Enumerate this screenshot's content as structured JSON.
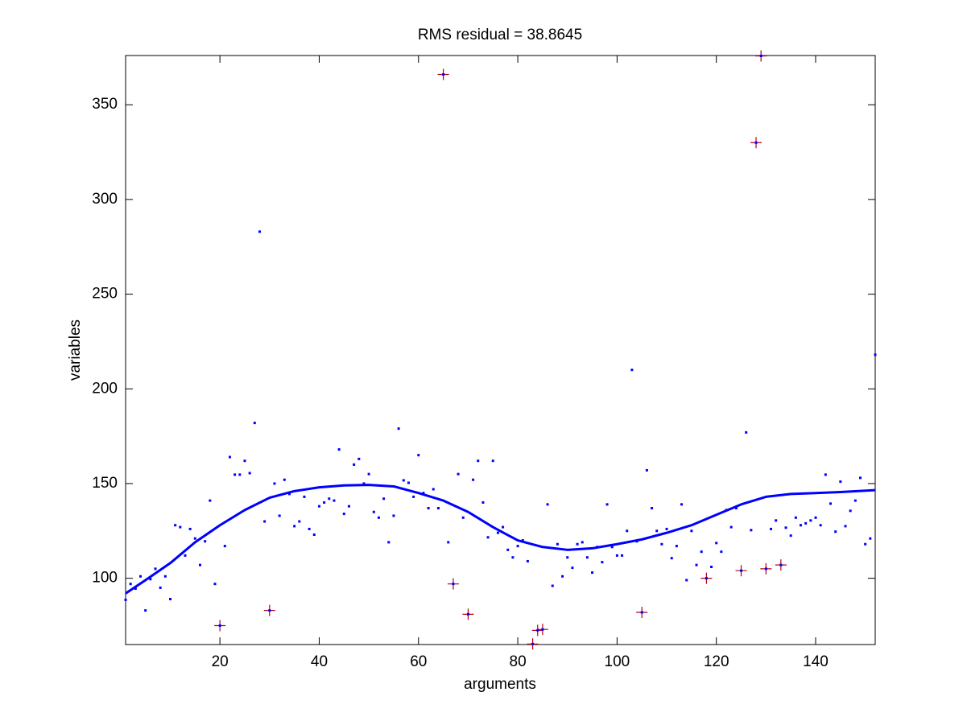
{
  "chart_data": {
    "type": "scatter",
    "title": "RMS residual = 38.8645",
    "x_label": "arguments",
    "y_label": "variables",
    "xlim": [
      1,
      152
    ],
    "ylim": [
      65,
      376
    ],
    "xticks": [
      20,
      40,
      60,
      80,
      100,
      120,
      140
    ],
    "yticks": [
      100,
      150,
      200,
      250,
      300,
      350
    ],
    "grid": false,
    "points": {
      "color": "#0000ff",
      "x": [
        1,
        2,
        3,
        4,
        5,
        6,
        7,
        8,
        9,
        10,
        11,
        12,
        13,
        14,
        15,
        16,
        17,
        18,
        19,
        20,
        21,
        22,
        23,
        24,
        25,
        26,
        27,
        28,
        29,
        30,
        31,
        32,
        33,
        34,
        35,
        36,
        37,
        38,
        39,
        40,
        41,
        42,
        43,
        44,
        45,
        46,
        47,
        48,
        49,
        50,
        51,
        52,
        53,
        54,
        55,
        56,
        57,
        58,
        59,
        60,
        61,
        62,
        63,
        64,
        65,
        66,
        67,
        68,
        69,
        70,
        71,
        72,
        73,
        74,
        75,
        76,
        77,
        78,
        79,
        80,
        81,
        82,
        83,
        84,
        85,
        86,
        87,
        88,
        89,
        90,
        91,
        92,
        93,
        94,
        95,
        96,
        97,
        98,
        99,
        100,
        101,
        102,
        103,
        104,
        105,
        106,
        107,
        108,
        109,
        110,
        111,
        112,
        113,
        114,
        115,
        116,
        117,
        118,
        119,
        120,
        121,
        122,
        123,
        124,
        125,
        126,
        127,
        128,
        129,
        130,
        131,
        132,
        133,
        134,
        135,
        136,
        137,
        138,
        139,
        140,
        141,
        142,
        143,
        144,
        145,
        146,
        147,
        148,
        149,
        150,
        151,
        152
      ],
      "y": [
        88.6,
        97,
        94.5,
        101,
        83,
        99.5,
        105,
        95,
        101,
        89,
        128,
        127,
        112,
        126,
        121,
        107,
        119.5,
        141,
        97,
        75,
        117,
        164,
        154.7,
        154.7,
        162,
        155.5,
        182,
        283,
        130,
        83,
        150,
        133,
        152,
        144.5,
        127.5,
        130,
        143,
        126,
        123,
        138,
        140,
        142,
        141,
        168,
        134,
        138,
        160,
        163,
        150,
        155,
        135,
        132,
        142,
        119,
        133,
        179,
        151.7,
        150.4,
        143,
        165,
        145,
        137,
        147,
        137,
        366,
        119,
        97,
        155,
        132,
        81,
        152,
        162,
        140,
        121.6,
        162,
        124,
        127,
        115,
        111,
        117,
        120,
        109,
        65.3,
        72.5,
        73,
        139,
        96,
        118,
        101,
        111,
        105.5,
        118,
        119,
        111,
        103,
        116.5,
        108.5,
        139,
        116.5,
        112,
        112,
        125,
        210,
        119.5,
        82,
        157,
        137,
        125,
        118,
        126,
        110.6,
        117,
        139,
        99,
        125,
        107,
        114,
        100,
        106,
        118.6,
        114,
        136,
        127,
        137,
        104,
        177,
        125.4,
        330,
        375.8,
        105,
        126,
        130.5,
        107,
        126.7,
        122.5,
        132,
        128,
        129,
        130.5,
        132,
        128,
        154.7,
        139.4,
        124.6,
        151,
        127.5,
        135.6,
        141,
        153,
        118,
        121,
        218
      ]
    },
    "outliers": {
      "color": "#b00020",
      "x": [
        20,
        30,
        65,
        67,
        70,
        83,
        84,
        85,
        105,
        118,
        125,
        128,
        129,
        130,
        133
      ],
      "y": [
        75,
        83,
        366,
        97,
        81,
        65.3,
        72.5,
        73,
        82,
        100,
        104,
        330,
        375.8,
        105,
        107
      ]
    },
    "fit": {
      "color": "#0000ff",
      "x": [
        1,
        5,
        10,
        15,
        20,
        25,
        30,
        35,
        40,
        45,
        50,
        55,
        60,
        65,
        70,
        75,
        80,
        85,
        90,
        95,
        100,
        105,
        110,
        115,
        120,
        125,
        130,
        135,
        140,
        145,
        152
      ],
      "y": [
        92,
        99,
        108,
        119,
        128,
        136,
        142.5,
        146,
        148,
        149,
        149.3,
        148.5,
        145,
        141,
        135,
        127,
        120,
        116.5,
        115,
        115.8,
        118,
        120.5,
        124,
        128,
        133.5,
        139,
        143,
        144.5,
        145,
        145.5,
        146.5
      ]
    }
  }
}
